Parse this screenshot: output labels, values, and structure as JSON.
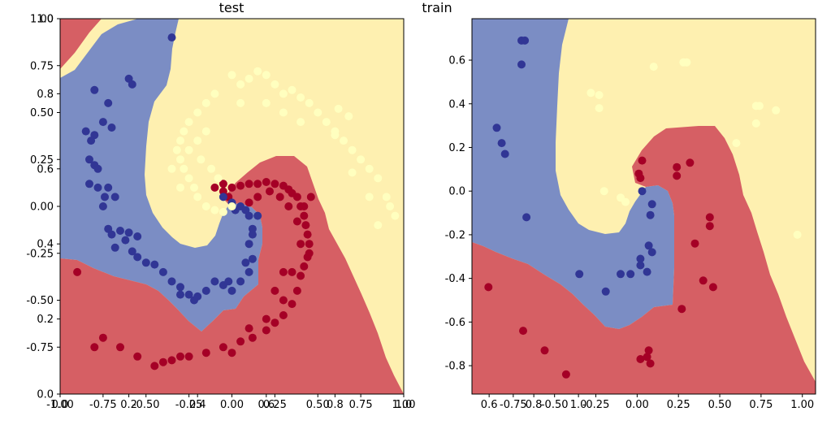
{
  "colors": {
    "red_region": "#d7191c",
    "blue_region": "#2c4fa3",
    "yellow_region": "#fef0b0",
    "red_point": "#a50026",
    "blue_point": "#313695",
    "yellow_point": "#ffffbf"
  },
  "chart_data": [
    {
      "type": "scatter",
      "title": "test",
      "xlim": [
        -1.0,
        1.0
      ],
      "ylim": [
        -1.0,
        1.0
      ],
      "xticks": [
        "-1.00",
        "-0.75",
        "-0.50",
        "-0.25",
        "0.00",
        "0.25",
        "0.50",
        "0.75",
        "1.00"
      ],
      "yticks": [
        "-0.75",
        "-0.50",
        "-0.25",
        "0.00",
        "0.25",
        "0.50",
        "0.75",
        "1.00"
      ],
      "overlay_xticks": [
        "0.0",
        "0.2",
        "0.4",
        "0.6",
        "0.8",
        "1.0"
      ],
      "overlay_yticks": [
        "0.0",
        "0.2",
        "0.4",
        "0.6",
        "0.8",
        "1.0"
      ],
      "grid": false,
      "series": [
        {
          "class": "red",
          "points": [
            [
              -0.1,
              0.1
            ],
            [
              -0.05,
              0.12
            ],
            [
              0.0,
              0.1
            ],
            [
              0.05,
              0.11
            ],
            [
              0.1,
              0.12
            ],
            [
              0.15,
              0.12
            ],
            [
              0.2,
              0.13
            ],
            [
              0.25,
              0.12
            ],
            [
              0.3,
              0.11
            ],
            [
              0.33,
              0.09
            ],
            [
              0.35,
              0.07
            ],
            [
              0.38,
              0.05
            ],
            [
              0.4,
              0.0
            ],
            [
              0.42,
              -0.05
            ],
            [
              0.43,
              -0.1
            ],
            [
              0.44,
              -0.15
            ],
            [
              0.45,
              -0.2
            ],
            [
              0.44,
              -0.27
            ],
            [
              0.42,
              -0.32
            ],
            [
              0.4,
              -0.37
            ],
            [
              0.38,
              -0.45
            ],
            [
              0.35,
              -0.52
            ],
            [
              0.3,
              -0.58
            ],
            [
              0.25,
              -0.62
            ],
            [
              0.2,
              -0.66
            ],
            [
              0.12,
              -0.7
            ],
            [
              0.05,
              -0.72
            ],
            [
              -0.05,
              -0.75
            ],
            [
              -0.15,
              -0.78
            ],
            [
              -0.25,
              -0.8
            ],
            [
              -0.35,
              -0.82
            ],
            [
              -0.45,
              -0.85
            ],
            [
              -0.55,
              -0.8
            ],
            [
              -0.65,
              -0.75
            ],
            [
              -0.75,
              -0.7
            ],
            [
              -0.9,
              -0.35
            ],
            [
              -0.8,
              -0.75
            ],
            [
              -0.3,
              -0.8
            ],
            [
              -0.4,
              -0.83
            ],
            [
              0.0,
              -0.78
            ],
            [
              0.1,
              -0.65
            ],
            [
              0.2,
              -0.6
            ],
            [
              0.3,
              -0.5
            ],
            [
              0.35,
              -0.35
            ],
            [
              0.4,
              -0.2
            ],
            [
              0.45,
              -0.25
            ],
            [
              0.38,
              -0.08
            ],
            [
              0.42,
              0.0
            ],
            [
              0.46,
              0.05
            ],
            [
              0.33,
              0.0
            ],
            [
              0.28,
              0.05
            ],
            [
              0.22,
              0.08
            ],
            [
              0.15,
              0.05
            ],
            [
              0.1,
              0.02
            ],
            [
              -0.02,
              0.05
            ],
            [
              -0.05,
              0.08
            ],
            [
              0.3,
              -0.35
            ],
            [
              0.25,
              -0.45
            ]
          ]
        },
        {
          "class": "blue",
          "points": [
            [
              -0.35,
              0.9
            ],
            [
              -0.6,
              0.68
            ],
            [
              -0.58,
              0.65
            ],
            [
              -0.8,
              0.62
            ],
            [
              -0.72,
              0.55
            ],
            [
              -0.75,
              0.45
            ],
            [
              -0.7,
              0.42
            ],
            [
              -0.85,
              0.4
            ],
            [
              -0.8,
              0.38
            ],
            [
              -0.82,
              0.35
            ],
            [
              -0.83,
              0.25
            ],
            [
              -0.8,
              0.22
            ],
            [
              -0.78,
              0.2
            ],
            [
              -0.83,
              0.12
            ],
            [
              -0.78,
              0.1
            ],
            [
              -0.72,
              0.1
            ],
            [
              -0.74,
              0.05
            ],
            [
              -0.68,
              0.05
            ],
            [
              -0.75,
              0.0
            ],
            [
              -0.72,
              -0.12
            ],
            [
              -0.7,
              -0.15
            ],
            [
              -0.65,
              -0.13
            ],
            [
              -0.6,
              -0.14
            ],
            [
              -0.55,
              -0.16
            ],
            [
              -0.62,
              -0.18
            ],
            [
              -0.68,
              -0.22
            ],
            [
              -0.58,
              -0.24
            ],
            [
              -0.55,
              -0.27
            ],
            [
              -0.5,
              -0.3
            ],
            [
              -0.45,
              -0.31
            ],
            [
              -0.4,
              -0.35
            ],
            [
              -0.35,
              -0.4
            ],
            [
              -0.3,
              -0.43
            ],
            [
              -0.25,
              -0.47
            ],
            [
              -0.2,
              -0.48
            ],
            [
              -0.15,
              -0.45
            ],
            [
              -0.1,
              -0.4
            ],
            [
              -0.05,
              -0.42
            ],
            [
              0.0,
              -0.45
            ],
            [
              0.05,
              -0.4
            ],
            [
              0.1,
              -0.35
            ],
            [
              0.12,
              -0.28
            ],
            [
              0.1,
              -0.2
            ],
            [
              0.12,
              -0.12
            ],
            [
              0.1,
              -0.05
            ],
            [
              0.05,
              0.0
            ],
            [
              0.0,
              0.02
            ],
            [
              -0.05,
              0.05
            ],
            [
              0.02,
              -0.02
            ],
            [
              0.08,
              -0.02
            ],
            [
              0.15,
              -0.05
            ],
            [
              -0.3,
              -0.47
            ],
            [
              -0.22,
              -0.5
            ],
            [
              -0.02,
              -0.4
            ],
            [
              0.08,
              -0.3
            ],
            [
              0.12,
              -0.15
            ]
          ]
        },
        {
          "class": "yellow",
          "points": [
            [
              0.0,
              0.7
            ],
            [
              0.05,
              0.65
            ],
            [
              0.1,
              0.68
            ],
            [
              0.15,
              0.72
            ],
            [
              0.2,
              0.7
            ],
            [
              0.25,
              0.65
            ],
            [
              0.3,
              0.6
            ],
            [
              0.35,
              0.62
            ],
            [
              0.4,
              0.58
            ],
            [
              0.45,
              0.55
            ],
            [
              0.5,
              0.5
            ],
            [
              0.55,
              0.45
            ],
            [
              0.6,
              0.4
            ],
            [
              0.65,
              0.35
            ],
            [
              0.7,
              0.3
            ],
            [
              0.75,
              0.25
            ],
            [
              0.8,
              0.2
            ],
            [
              0.85,
              0.15
            ],
            [
              0.9,
              0.05
            ],
            [
              0.92,
              0.0
            ],
            [
              0.95,
              -0.05
            ],
            [
              -0.1,
              0.6
            ],
            [
              -0.15,
              0.55
            ],
            [
              -0.2,
              0.5
            ],
            [
              -0.25,
              0.45
            ],
            [
              -0.28,
              0.4
            ],
            [
              -0.3,
              0.35
            ],
            [
              -0.32,
              0.3
            ],
            [
              -0.3,
              0.25
            ],
            [
              -0.28,
              0.2
            ],
            [
              -0.25,
              0.15
            ],
            [
              -0.22,
              0.1
            ],
            [
              -0.2,
              0.05
            ],
            [
              -0.15,
              0.0
            ],
            [
              -0.1,
              -0.02
            ],
            [
              -0.05,
              -0.03
            ],
            [
              0.0,
              0.0
            ],
            [
              -0.25,
              0.3
            ],
            [
              -0.2,
              0.35
            ],
            [
              -0.15,
              0.4
            ],
            [
              0.05,
              0.55
            ],
            [
              0.2,
              0.55
            ],
            [
              0.3,
              0.5
            ],
            [
              0.4,
              0.45
            ],
            [
              0.6,
              0.38
            ],
            [
              0.7,
              0.18
            ],
            [
              0.8,
              0.05
            ],
            [
              0.85,
              -0.1
            ],
            [
              -0.18,
              0.25
            ],
            [
              -0.12,
              0.2
            ],
            [
              -0.08,
              0.15
            ],
            [
              -0.3,
              0.1
            ],
            [
              -0.35,
              0.2
            ],
            [
              0.62,
              0.52
            ],
            [
              0.68,
              0.48
            ]
          ]
        }
      ]
    },
    {
      "type": "scatter",
      "title": "train",
      "xlim": [
        -1.0,
        1.08
      ],
      "ylim": [
        -0.93,
        0.79
      ],
      "xticks": [
        "-0.75",
        "-0.50",
        "-0.25",
        "0.00",
        "0.25",
        "0.50",
        "0.75",
        "1.00"
      ],
      "yticks": [
        "-0.8",
        "-0.6",
        "-0.4",
        "-0.2",
        "0.0",
        "0.2",
        "0.4",
        "0.6"
      ],
      "overlay_xticks": [
        "0.6",
        "0.8",
        "1.0"
      ],
      "grid": false,
      "series": [
        {
          "class": "red",
          "points": [
            [
              -0.9,
              -0.44
            ],
            [
              -0.69,
              -0.64
            ],
            [
              -0.56,
              -0.73
            ],
            [
              -0.43,
              -0.84
            ],
            [
              0.02,
              -0.77
            ],
            [
              0.06,
              -0.76
            ],
            [
              0.08,
              -0.79
            ],
            [
              0.07,
              -0.73
            ],
            [
              0.03,
              0.14
            ],
            [
              0.01,
              0.08
            ],
            [
              0.02,
              0.06
            ],
            [
              0.24,
              0.11
            ],
            [
              0.24,
              0.07
            ],
            [
              0.32,
              0.13
            ],
            [
              0.44,
              -0.12
            ],
            [
              0.44,
              -0.16
            ],
            [
              0.35,
              -0.24
            ],
            [
              0.4,
              -0.41
            ],
            [
              0.46,
              -0.44
            ],
            [
              0.27,
              -0.54
            ]
          ]
        },
        {
          "class": "blue",
          "points": [
            [
              -0.7,
              0.69
            ],
            [
              -0.68,
              0.69
            ],
            [
              -0.7,
              0.58
            ],
            [
              -0.85,
              0.29
            ],
            [
              -0.82,
              0.22
            ],
            [
              -0.8,
              0.17
            ],
            [
              -0.67,
              -0.12
            ],
            [
              -0.35,
              -0.38
            ],
            [
              -0.19,
              -0.46
            ],
            [
              -0.1,
              -0.38
            ],
            [
              -0.04,
              -0.38
            ],
            [
              0.02,
              -0.31
            ],
            [
              0.02,
              -0.34
            ],
            [
              0.06,
              -0.37
            ],
            [
              0.07,
              -0.25
            ],
            [
              0.09,
              -0.28
            ],
            [
              0.08,
              -0.11
            ],
            [
              0.09,
              -0.06
            ],
            [
              0.03,
              0.0
            ]
          ]
        },
        {
          "class": "yellow",
          "points": [
            [
              0.1,
              0.57
            ],
            [
              0.28,
              0.59
            ],
            [
              0.3,
              0.59
            ],
            [
              -0.28,
              0.45
            ],
            [
              -0.23,
              0.44
            ],
            [
              -0.23,
              0.38
            ],
            [
              0.72,
              0.39
            ],
            [
              0.74,
              0.39
            ],
            [
              0.84,
              0.37
            ],
            [
              0.72,
              0.31
            ],
            [
              0.97,
              -0.2
            ],
            [
              -0.2,
              0.0
            ],
            [
              -0.1,
              -0.03
            ],
            [
              -0.07,
              -0.05
            ],
            [
              0.6,
              0.22
            ]
          ]
        }
      ]
    }
  ],
  "titles": {
    "left": "test",
    "right": "train"
  }
}
